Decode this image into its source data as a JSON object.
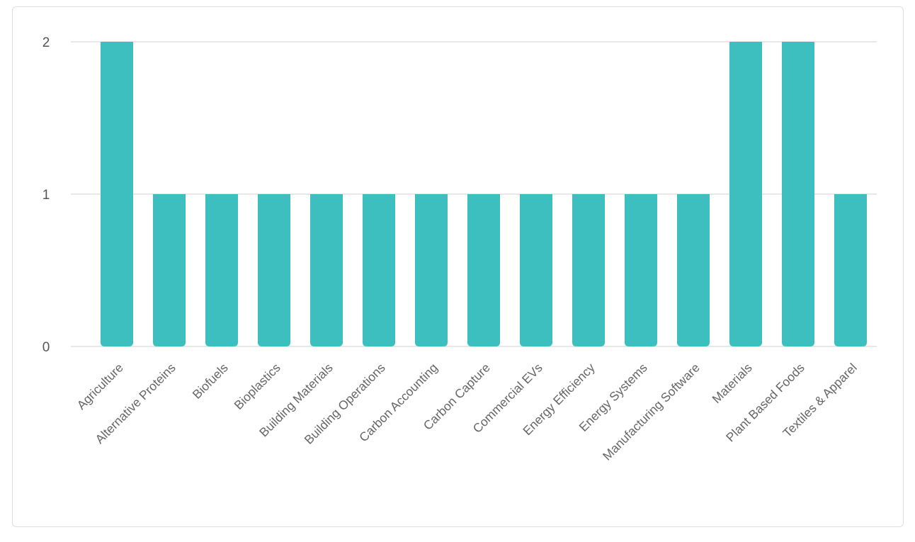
{
  "chart_data": {
    "type": "bar",
    "title": "",
    "xlabel": "",
    "ylabel": "",
    "categories": [
      "Agriculture",
      "Alternative Proteins",
      "Biofuels",
      "Bioplastics",
      "Building Materials",
      "Building Operations",
      "Carbon Accounting",
      "Carbon Capture",
      "Commercial EVs",
      "Energy Efficiency",
      "Energy Systems",
      "Manufacturing Software",
      "Materials",
      "Plant Based Foods",
      "Textiles & Apparel"
    ],
    "values": [
      2,
      1,
      1,
      1,
      1,
      1,
      1,
      1,
      1,
      1,
      1,
      1,
      2,
      2,
      1
    ],
    "ylim": [
      0,
      2
    ],
    "yticks": [
      "0",
      "1",
      "2"
    ],
    "grid": true,
    "color": "#3dbfbf"
  }
}
